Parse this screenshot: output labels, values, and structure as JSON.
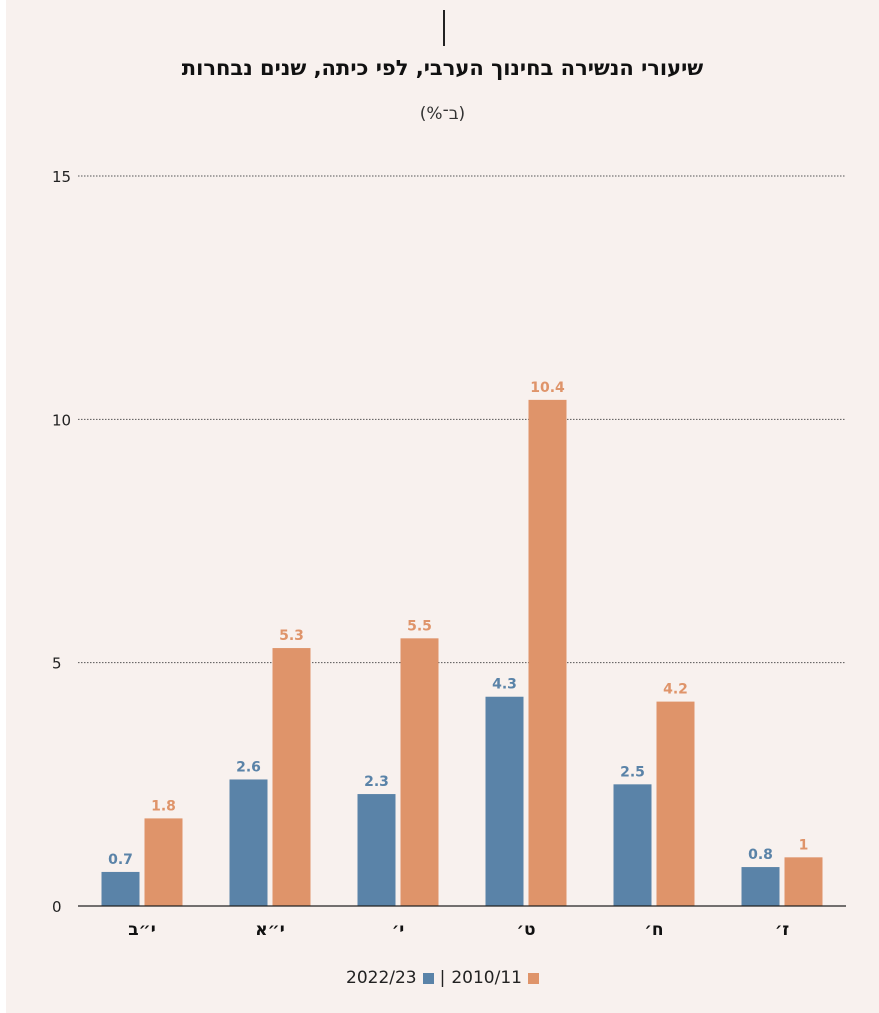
{
  "chart_data": {
    "type": "bar",
    "title": "שיעורי הנשירה בחינוך הערבי, לפי כיתה, שנים נבחרות",
    "subtitle": "(ב־%)",
    "categories": [
      "י״ב",
      "י״א",
      "י׳",
      "ט׳",
      "ח׳",
      "ז׳"
    ],
    "series": [
      {
        "name": "2022/23",
        "color": "#5a83a8",
        "values": [
          0.7,
          2.6,
          2.3,
          4.3,
          2.5,
          0.8
        ],
        "labels": [
          "0.7",
          "2.6",
          "2.3",
          "4.3",
          "2.5",
          "0.8"
        ]
      },
      {
        "name": "2010/11",
        "color": "#df946a",
        "values": [
          1.8,
          5.3,
          5.5,
          10.4,
          4.2,
          1
        ],
        "labels": [
          "1.8",
          "5.3",
          "5.5",
          "10.4",
          "4.2",
          "1"
        ]
      }
    ],
    "ylim": [
      0,
      15
    ],
    "yticks": [
      0,
      5,
      10,
      15
    ],
    "grid": true,
    "legend_position": "bottom",
    "legend_separator": "|"
  }
}
